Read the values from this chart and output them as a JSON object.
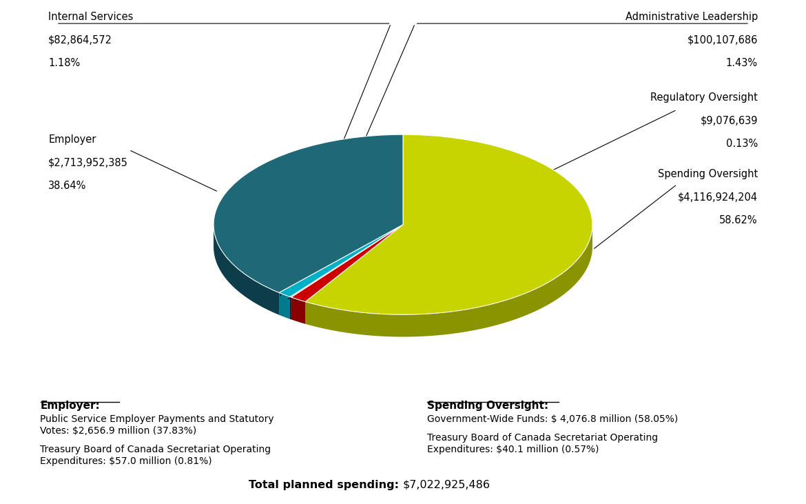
{
  "slices": [
    {
      "label": "Spending Oversight",
      "value": 4116924204,
      "pct": 58.62,
      "color": "#c8d400",
      "shadow_color": "#8a9400",
      "amount_str": "$4,116,924,204"
    },
    {
      "label": "Administrative Leadership",
      "value": 100107686,
      "pct": 1.43,
      "color": "#cc0000",
      "shadow_color": "#880000",
      "amount_str": "$100,107,686"
    },
    {
      "label": "Regulatory Oversight",
      "value": 9076639,
      "pct": 0.13,
      "color": "#1a1a1a",
      "shadow_color": "#000000",
      "amount_str": "$9,076,639"
    },
    {
      "label": "Internal Services",
      "value": 82864572,
      "pct": 1.18,
      "color": "#00b0c8",
      "shadow_color": "#007a8c",
      "amount_str": "$82,864,572"
    },
    {
      "label": "Employer",
      "value": 2713952385,
      "pct": 38.64,
      "color": "#1e6878",
      "shadow_color": "#0d3d4a",
      "amount_str": "$2,713,952,385"
    }
  ],
  "total_label": "Total planned spending:",
  "total_value": "$7,022,925,486",
  "background_color": "#ffffff"
}
